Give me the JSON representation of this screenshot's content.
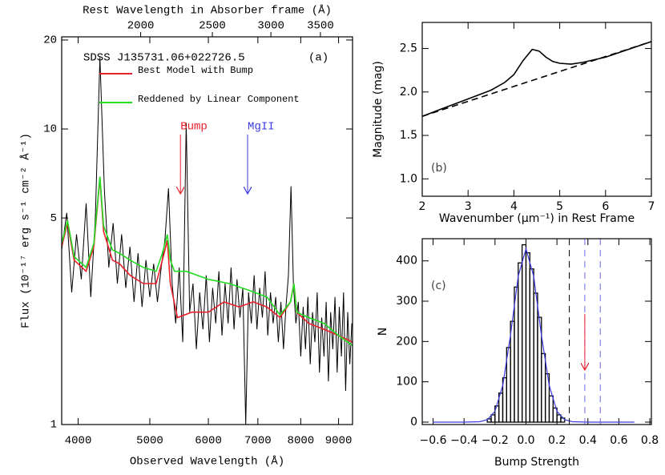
{
  "chart_data": [
    {
      "type": "line",
      "xlabel": "Observed Wavelength (Å)",
      "ylabel": "Flux (10⁻¹⁷ erg s⁻¹ cm⁻² Å⁻¹)",
      "x2label": "Rest Wavelength in Absorber frame (Å)",
      "object": "SDSS J135731.06+022726.5",
      "panel": "(a)",
      "xscale": "log",
      "yscale": "log",
      "xlim": [
        3800,
        9400
      ],
      "ylim": [
        1,
        20.5
      ],
      "xticks": [
        4000,
        5000,
        6000,
        7000,
        8000,
        9000
      ],
      "yticks": [
        1,
        5,
        10,
        20
      ],
      "x2lim": [
        1564,
        3868
      ],
      "x2ticks": [
        2000,
        2500,
        3000,
        3500
      ],
      "annotations": [
        {
          "text": "Bump",
          "x": 5500,
          "color": "#e8202a"
        },
        {
          "text": "MgII",
          "x": 6780,
          "color": "#3a3ae0"
        }
      ],
      "series": [
        {
          "color": "#000000",
          "x": [
            3800,
            3860,
            3920,
            3980,
            4040,
            4100,
            4160,
            4220,
            4280,
            4340,
            4400,
            4460,
            4520,
            4580,
            4640,
            4700,
            4760,
            4820,
            4880,
            4940,
            5000,
            5060,
            5120,
            5180,
            5240,
            5300,
            5360,
            5420,
            5480,
            5540,
            5600,
            5660,
            5720,
            5780,
            5840,
            5900,
            5960,
            6020,
            6080,
            6140,
            6200,
            6260,
            6320,
            6380,
            6440,
            6500,
            6560,
            6620,
            6680,
            6740,
            6800,
            6860,
            6920,
            6980,
            7040,
            7100,
            7160,
            7220,
            7280,
            7340,
            7400,
            7460,
            7520,
            7580,
            7640,
            7700,
            7760,
            7820,
            7880,
            7940,
            8000,
            8060,
            8120,
            8180,
            8240,
            8300,
            8360,
            8420,
            8480,
            8540,
            8600,
            8660,
            8720,
            8780,
            8840,
            8900,
            8960,
            9020,
            9080,
            9140,
            9200,
            9260,
            9320,
            9380
          ],
          "values": [
            3.9,
            5.2,
            2.8,
            4.4,
            3.1,
            5.6,
            2.7,
            5.0,
            17.5,
            6.2,
            3.4,
            4.8,
            3.0,
            4.4,
            2.9,
            4.0,
            2.6,
            3.8,
            2.5,
            3.6,
            2.7,
            3.5,
            2.6,
            3.4,
            4.2,
            6.3,
            3.0,
            2.2,
            3.4,
            1.9,
            10.5,
            2.4,
            3.0,
            1.8,
            2.8,
            2.1,
            3.2,
            1.9,
            2.9,
            2.2,
            3.3,
            2.0,
            3.0,
            2.2,
            3.4,
            2.1,
            3.1,
            2.3,
            2.9,
            1.0,
            2.8,
            2.2,
            3.2,
            2.1,
            2.9,
            2.3,
            3.3,
            2.0,
            2.8,
            2.2,
            2.7,
            1.9,
            2.6,
            1.8,
            2.5,
            3.2,
            6.4,
            3.0,
            2.2,
            2.6,
            1.7,
            2.5,
            1.8,
            2.7,
            1.6,
            2.4,
            1.9,
            2.8,
            1.5,
            2.3,
            1.7,
            2.6,
            1.4,
            2.4,
            1.8,
            2.7,
            1.5,
            2.5,
            1.7,
            2.8,
            1.3,
            2.4,
            1.6,
            2.2
          ]
        },
        {
          "name": "Best Model with Bump",
          "color": "#e8202a",
          "x": [
            3800,
            3870,
            3950,
            4100,
            4200,
            4280,
            4330,
            4450,
            4550,
            4700,
            4900,
            5100,
            5200,
            5280,
            5330,
            5450,
            5700,
            6000,
            6300,
            6600,
            6900,
            7200,
            7500,
            7750,
            7830,
            7900,
            8200,
            8600,
            9000,
            9400
          ],
          "values": [
            4.0,
            4.8,
            3.6,
            3.3,
            4.0,
            6.8,
            4.5,
            3.6,
            3.5,
            3.2,
            3.0,
            3.0,
            3.6,
            4.2,
            3.0,
            2.3,
            2.4,
            2.4,
            2.6,
            2.5,
            2.6,
            2.5,
            2.3,
            2.6,
            3.0,
            2.4,
            2.2,
            2.1,
            2.0,
            1.9
          ]
        },
        {
          "name": "Reddened by Linear Component",
          "color": "#22dd22",
          "x": [
            3800,
            3870,
            3950,
            4100,
            4200,
            4280,
            4330,
            4450,
            4550,
            4700,
            4900,
            5100,
            5200,
            5280,
            5330,
            5400,
            5600,
            6000,
            6400,
            6800,
            7200,
            7500,
            7750,
            7830,
            7900,
            8200,
            8600,
            9000,
            9400
          ],
          "values": [
            4.1,
            4.9,
            3.7,
            3.4,
            4.1,
            6.9,
            4.7,
            3.9,
            3.8,
            3.6,
            3.4,
            3.3,
            3.8,
            4.4,
            3.6,
            3.3,
            3.3,
            3.1,
            3.0,
            2.85,
            2.7,
            2.35,
            2.6,
            3.0,
            2.4,
            2.3,
            2.2,
            2.0,
            1.85
          ]
        }
      ]
    },
    {
      "type": "line",
      "xlabel": "Wavenumber (μm⁻¹) in Rest Frame",
      "ylabel": "Magnitude (mag)",
      "panel": "(b)",
      "xlim": [
        2,
        7
      ],
      "ylim": [
        0.8,
        2.8
      ],
      "xticks": [
        2,
        3,
        4,
        5,
        6,
        7
      ],
      "yticks": [
        {
          "value": 1.0,
          "label": "1.0"
        },
        1.5,
        {
          "value": 2.0,
          "label": "2.0"
        },
        2.5
      ],
      "series": [
        {
          "color": "#000000",
          "dash": false,
          "x": [
            2,
            2.5,
            3,
            3.5,
            3.8,
            4,
            4.2,
            4.4,
            4.55,
            4.7,
            4.85,
            5,
            5.25,
            5.5,
            6,
            6.5,
            7
          ],
          "values": [
            1.72,
            1.82,
            1.92,
            2.02,
            2.11,
            2.2,
            2.36,
            2.49,
            2.47,
            2.4,
            2.35,
            2.33,
            2.32,
            2.34,
            2.4,
            2.49,
            2.58
          ]
        },
        {
          "color": "#000000",
          "dash": true,
          "x": [
            2,
            7
          ],
          "values": [
            1.72,
            2.58
          ]
        }
      ]
    },
    {
      "type": "histogram",
      "xlabel": "Bump Strength",
      "ylabel": "N",
      "panel": "(c)",
      "xlim": [
        -0.67,
        0.81
      ],
      "ylim": [
        -6,
        455
      ],
      "xticks": [
        {
          "value": -0.6,
          "label": "−0.6"
        },
        {
          "value": -0.4,
          "label": "−0.4"
        },
        {
          "value": -0.2,
          "label": "−0.2"
        },
        {
          "value": 0,
          "label": "0.0"
        },
        0.2,
        0.4,
        0.6,
        0.8
      ],
      "yticks": [
        0,
        100,
        200,
        300,
        400
      ],
      "bins": [
        -0.25,
        -0.225,
        -0.2,
        -0.175,
        -0.15,
        -0.125,
        -0.1,
        -0.075,
        -0.05,
        -0.025,
        0,
        0.025,
        0.05,
        0.075,
        0.1,
        0.125,
        0.15,
        0.175,
        0.2,
        0.225,
        0.25
      ],
      "values": [
        8,
        18,
        40,
        72,
        110,
        185,
        250,
        335,
        395,
        440,
        420,
        380,
        320,
        260,
        170,
        120,
        65,
        35,
        18,
        10
      ],
      "color": "#000000",
      "fit": {
        "color": "#3a3ae0",
        "x": [
          -0.6,
          -0.4,
          -0.3,
          -0.25,
          -0.2,
          -0.15,
          -0.1,
          -0.05,
          0,
          0.05,
          0.1,
          0.15,
          0.2,
          0.25,
          0.3,
          0.4,
          0.7
        ],
        "values": [
          0,
          0,
          1,
          6,
          27,
          91,
          215,
          362,
          430,
          362,
          215,
          91,
          27,
          6,
          1,
          0,
          0
        ]
      },
      "vlines": [
        {
          "x": 0.28,
          "color": "#000000"
        },
        {
          "x": 0.38,
          "color": "#6a6ae8"
        },
        {
          "x": 0.48,
          "color": "#6a6ae8"
        }
      ],
      "arrow_x": 0.38,
      "arrow_color": "#e8202a"
    }
  ]
}
